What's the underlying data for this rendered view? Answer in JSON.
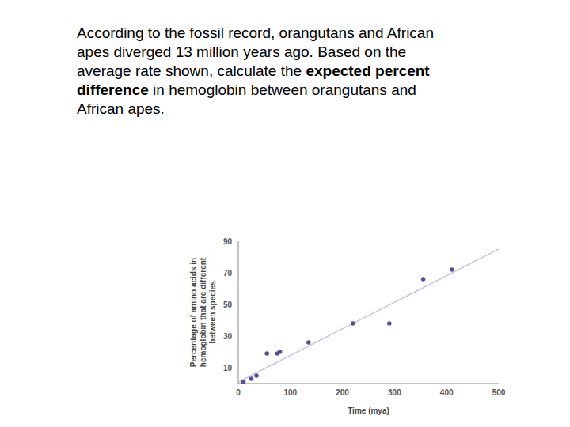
{
  "chart_data": {
    "type": "scatter",
    "xlabel": "Time (mya)",
    "ylabel": "Percentage of amino acids in hemoglobin that are different between species",
    "x": [
      10,
      25,
      35,
      55,
      75,
      80,
      135,
      220,
      290,
      355,
      410
    ],
    "values": [
      1,
      3,
      5,
      19,
      19,
      20,
      26,
      38,
      38,
      66,
      72
    ],
    "color": "#5b4a9e",
    "xlim": [
      0,
      500
    ],
    "ylim": [
      0,
      90
    ],
    "xticks": [
      0,
      100,
      200,
      300,
      400,
      500
    ],
    "yticks": [
      10,
      30,
      50,
      70,
      90
    ],
    "grid": false,
    "trend_line": {
      "x": [
        0,
        500
      ],
      "y": [
        1,
        85
      ],
      "color": "#c3c3e3"
    }
  },
  "question": {
    "lines": [
      [
        {
          "text": "According to the fossil record, orangutans and African",
          "bold": false
        }
      ],
      [
        {
          "text": "apes diverged 13 million years ago. Based on the",
          "bold": false
        }
      ],
      [
        {
          "text": "average rate shown, calculate the ",
          "bold": false
        },
        {
          "text": "expected percent",
          "bold": true
        }
      ],
      [
        {
          "text": "difference",
          "bold": true
        },
        {
          "text": " in hemoglobin between orangutans and",
          "bold": false
        }
      ],
      [
        {
          "text": "African apes.",
          "bold": false
        }
      ]
    ]
  }
}
